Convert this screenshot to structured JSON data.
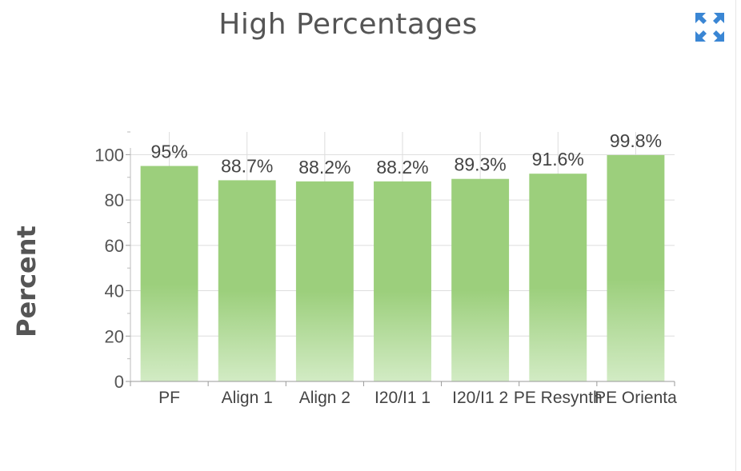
{
  "header": {
    "expand_icon": "expand-arrows-icon",
    "expand_color": "#3a86d4"
  },
  "chart_data": {
    "type": "bar",
    "title": "High Percentages",
    "xlabel": "",
    "ylabel": "Percent",
    "categories": [
      "PF",
      "Align 1",
      "Align 2",
      "I20/I1 1",
      "I20/I1 2",
      "PE Resynth",
      "PE Orienta"
    ],
    "values": [
      95,
      88.7,
      88.2,
      88.2,
      89.3,
      91.6,
      99.8
    ],
    "data_labels": [
      "95%",
      "88.7%",
      "88.2%",
      "88.2%",
      "89.3%",
      "91.6%",
      "99.8%"
    ],
    "ylim": [
      0,
      110
    ],
    "yticks": [
      0,
      20,
      40,
      60,
      80,
      100
    ],
    "grid": true,
    "bar_color": "#9ccf7c",
    "bar_color_light": "#d2ebc4"
  }
}
